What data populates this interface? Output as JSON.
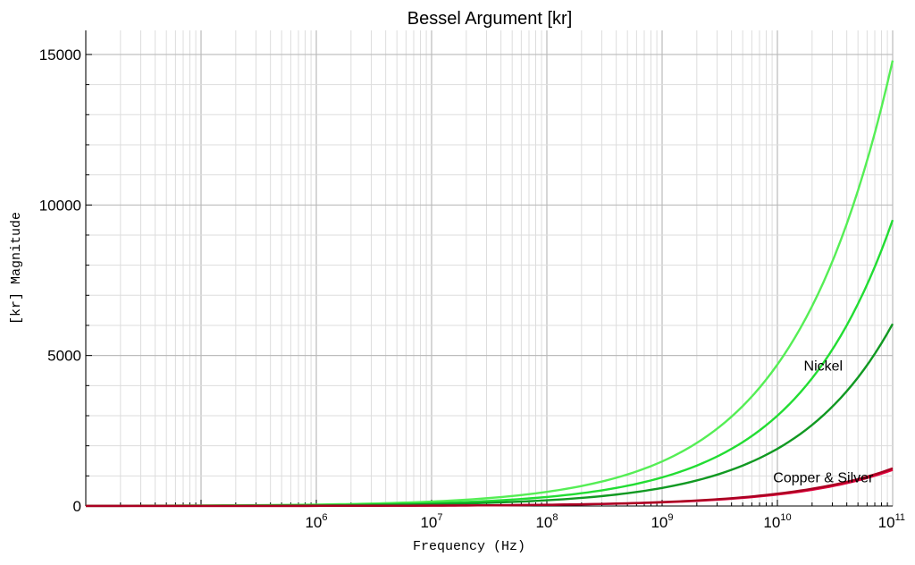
{
  "chart_data": {
    "type": "line",
    "title": "Bessel Argument [kr]",
    "xlabel": "Frequency (Hz)",
    "ylabel": "[kr] Magnitude",
    "x_scale": "log",
    "xlim": [
      10000,
      100000000000
    ],
    "ylim": [
      0,
      15800
    ],
    "grid": true,
    "x_ticks": [
      {
        "base": "10",
        "exp": "6",
        "value": 1000000
      },
      {
        "base": "10",
        "exp": "7",
        "value": 10000000
      },
      {
        "base": "10",
        "exp": "8",
        "value": 100000000
      },
      {
        "base": "10",
        "exp": "9",
        "value": 1000000000
      },
      {
        "base": "10",
        "exp": "10",
        "value": 10000000000
      },
      {
        "base": "10",
        "exp": "11",
        "value": 100000000000
      }
    ],
    "y_ticks": [
      {
        "label": "0",
        "value": 0
      },
      {
        "label": "5000",
        "value": 5000
      },
      {
        "label": "10000",
        "value": 10000
      },
      {
        "label": "15000",
        "value": 15000
      }
    ],
    "series": [
      {
        "color": "#55ee55",
        "x": [
          10000,
          1000000,
          10000000,
          100000000,
          1000000000,
          10000000000,
          100000000000
        ],
        "y": [
          7,
          47,
          148,
          470,
          1480,
          4700,
          14800
        ]
      },
      {
        "color": "#22dd33",
        "x": [
          10000,
          1000000,
          10000000,
          100000000,
          1000000000,
          10000000000,
          100000000000
        ],
        "y": [
          5,
          30,
          95,
          300,
          950,
          3000,
          9500
        ]
      },
      {
        "color": "#119922",
        "x": [
          10000,
          1000000,
          10000000,
          100000000,
          1000000000,
          10000000000,
          100000000000
        ],
        "y": [
          3,
          19,
          60,
          190,
          600,
          1900,
          6050
        ]
      },
      {
        "color": "#e0003c",
        "x": [
          10000,
          1000000,
          10000000,
          100000000,
          1000000000,
          10000000000,
          100000000000
        ],
        "y": [
          1,
          3.8,
          12,
          38,
          120,
          380,
          1200
        ]
      },
      {
        "color": "#aa0022",
        "x": [
          10000,
          1000000,
          10000000,
          100000000,
          1000000000,
          10000000000,
          100000000000
        ],
        "y": [
          1,
          4.1,
          13,
          41,
          130,
          410,
          1250
        ]
      }
    ],
    "annotations": [
      {
        "text": "Nickel",
        "x": 25000000000,
        "y": 4500
      },
      {
        "text": "Copper & Silver",
        "x": 25000000000,
        "y": 780
      }
    ],
    "colors": {
      "major_grid": "#bbbbbb",
      "minor_grid": "#dddddd",
      "axis": "#000000"
    }
  }
}
